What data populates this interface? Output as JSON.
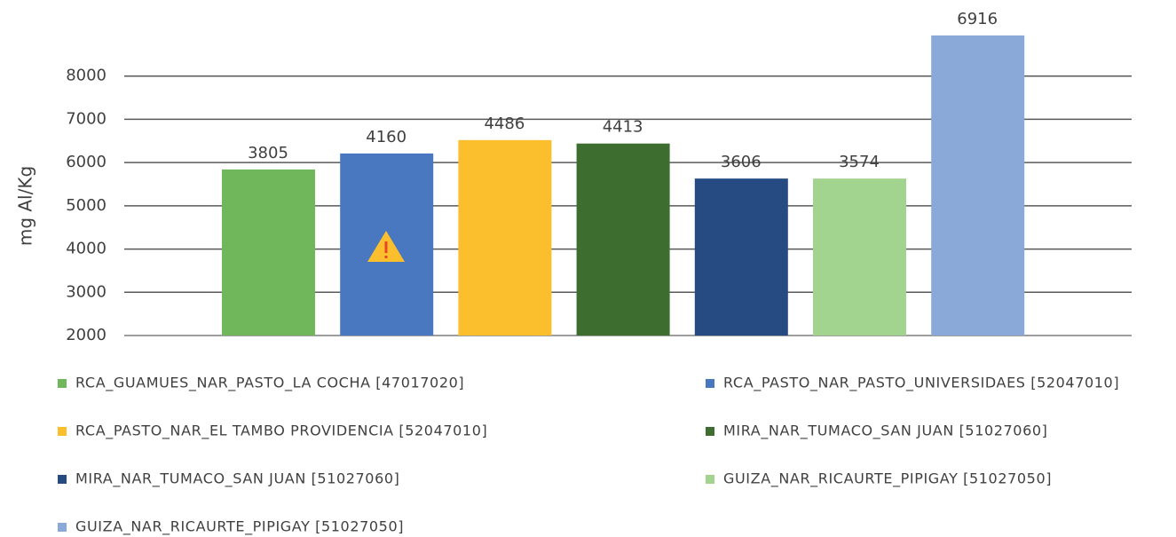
{
  "chart_data": {
    "type": "bar",
    "y_label": "mg Al/Kg",
    "categories": [
      null,
      null,
      null,
      null,
      null,
      null,
      null
    ],
    "series": [
      {
        "name": "RCA_GUAMUES_NAR_PASTO_LA COCHA [47017020]",
        "color": "#70b65a"
      },
      {
        "name": "RCA_PASTO_NAR_PASTO_UNIVERSIDAES [52047010]",
        "color": "#4a78c0"
      },
      {
        "name": "RCA_PASTO_NAR_EL TAMBO PROVIDENCIA [52047010]",
        "color": "#fbbf2e"
      },
      {
        "name": "MIRA_NAR_TUMACO_SAN JUAN [51027060]",
        "color": "#3d6e30"
      },
      {
        "name": "MIRA_NAR_TUMACO_SAN JUAN [51027060]",
        "color": "#264a82"
      },
      {
        "name": "GUIZA_NAR_RICAURTE_PIPIGAY [51027050]",
        "color": "#a2d490"
      },
      {
        "name": "GUIZA_NAR_RICAURTE_PIPIGAY [51027050]",
        "color": "#8aa8d8"
      }
    ],
    "values": [
      5840,
      6210,
      6520,
      6440,
      5630,
      5630,
      8940
    ],
    "annotations": [
      "3805",
      "4160",
      "4486",
      "4413",
      "3606",
      "3574",
      "6916"
    ],
    "ylim": [
      2000,
      9000
    ],
    "yticks": [
      2000,
      3000,
      4000,
      5000,
      6000,
      7000,
      8000
    ],
    "grid": true
  }
}
